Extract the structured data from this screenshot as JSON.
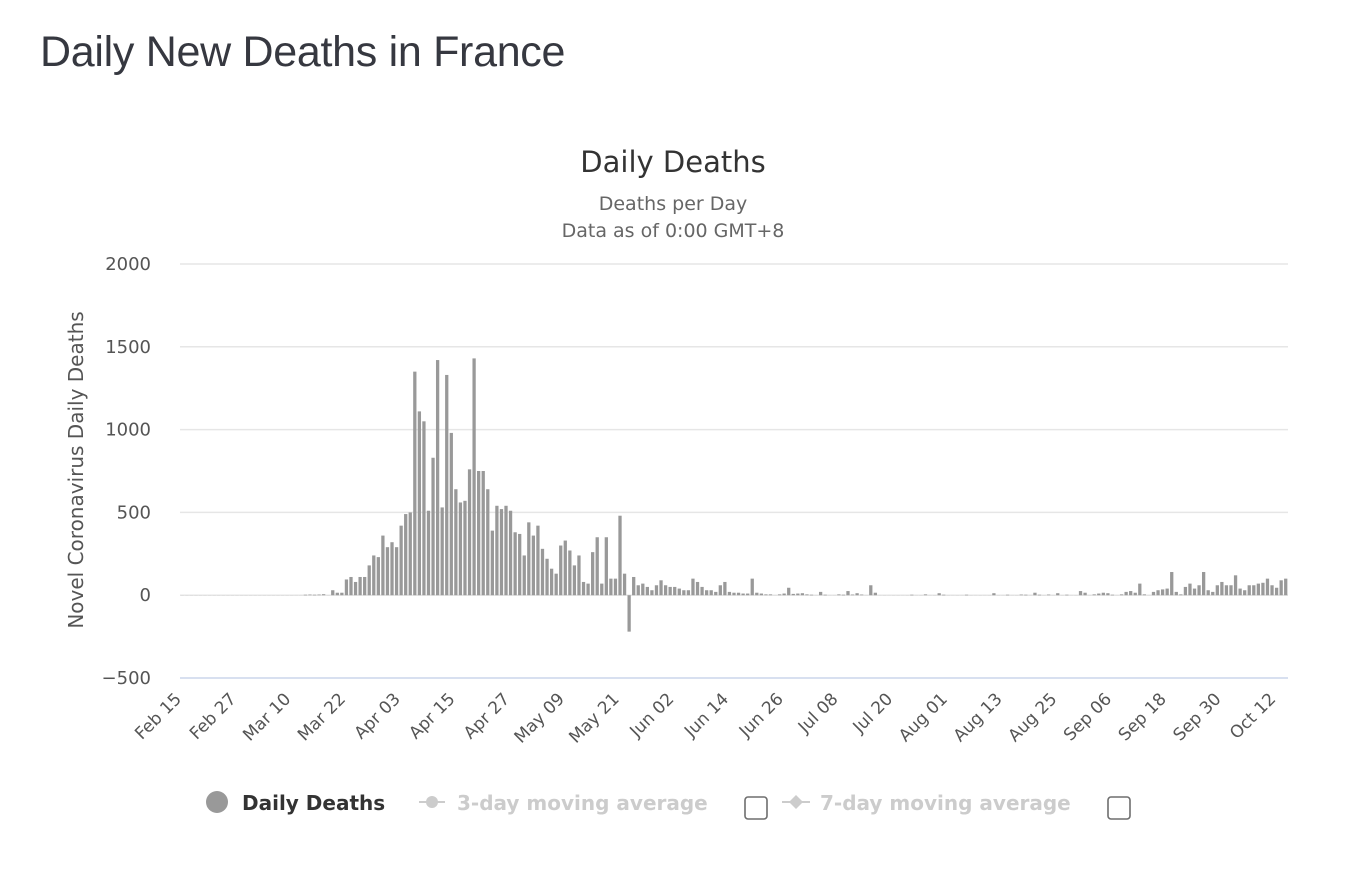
{
  "page": {
    "title": "Daily New Deaths in France"
  },
  "chart_data": {
    "type": "bar",
    "title": "Daily Deaths",
    "subtitle_lines": [
      "Deaths per Day",
      "Data as of 0:00 GMT+8"
    ],
    "ylabel": "Novel Coronavirus Daily Deaths",
    "xlabel": "",
    "ylim": [
      -500,
      2000
    ],
    "yticks": [
      -500,
      0,
      500,
      1000,
      1500,
      2000
    ],
    "grid": true,
    "x_start": "Feb 15",
    "x_end": "Oct 12",
    "xtick_labels": [
      "Feb 15",
      "Feb 27",
      "Mar 10",
      "Mar 22",
      "Apr 03",
      "Apr 15",
      "Apr 27",
      "May 09",
      "May 21",
      "Jun 02",
      "Jun 14",
      "Jun 26",
      "Jul 08",
      "Jul 20",
      "Aug 01",
      "Aug 13",
      "Aug 25",
      "Sep 06",
      "Sep 18",
      "Sep 30",
      "Oct 12"
    ],
    "xtick_interval_days": 12,
    "legend_position": "bottom",
    "series": [
      {
        "name": "Daily Deaths",
        "color": "#999999",
        "visible": true,
        "values": [
          0,
          0,
          0,
          0,
          0,
          0,
          0,
          0,
          0,
          0,
          0,
          0,
          0,
          0,
          0,
          0,
          0,
          0,
          0,
          0,
          0,
          0,
          0,
          1,
          0,
          2,
          2,
          3,
          4,
          3,
          4,
          6,
          1,
          30,
          15,
          15,
          95,
          110,
          80,
          110,
          110,
          180,
          240,
          230,
          360,
          290,
          320,
          290,
          420,
          490,
          500,
          1350,
          1110,
          1050,
          510,
          830,
          1420,
          530,
          1330,
          980,
          640,
          560,
          570,
          760,
          1430,
          750,
          750,
          640,
          390,
          540,
          520,
          540,
          510,
          380,
          370,
          240,
          440,
          360,
          420,
          280,
          220,
          160,
          130,
          300,
          330,
          270,
          180,
          240,
          80,
          70,
          260,
          350,
          70,
          350,
          100,
          100,
          480,
          130,
          -220,
          110,
          60,
          70,
          50,
          30,
          60,
          90,
          60,
          50,
          50,
          40,
          30,
          30,
          100,
          80,
          50,
          30,
          30,
          20,
          60,
          80,
          20,
          15,
          15,
          10,
          10,
          100,
          15,
          10,
          5,
          5,
          2,
          5,
          10,
          45,
          8,
          10,
          12,
          5,
          3,
          2,
          20,
          3,
          2,
          2,
          5,
          3,
          25,
          4,
          12,
          4,
          2,
          60,
          15,
          2,
          1,
          2,
          1,
          1,
          2,
          1,
          3,
          2,
          1,
          5,
          2,
          1,
          12,
          3,
          1,
          2,
          1,
          2,
          3,
          1,
          2,
          1,
          2,
          1,
          12,
          1,
          2,
          3,
          2,
          1,
          4,
          3,
          2,
          15,
          3,
          1,
          4,
          2,
          12,
          1,
          3,
          2,
          1,
          25,
          15,
          2,
          5,
          10,
          15,
          12,
          3,
          2,
          5,
          20,
          25,
          15,
          70,
          5,
          2,
          20,
          30,
          35,
          40,
          140,
          20,
          5,
          50,
          70,
          40,
          60,
          140,
          30,
          20,
          60,
          80,
          60,
          60,
          120,
          40,
          30,
          60,
          60,
          70,
          75,
          100,
          60,
          45,
          90,
          100
        ]
      },
      {
        "name": "3-day moving average",
        "visible": false
      },
      {
        "name": "7-day moving average",
        "visible": false
      }
    ]
  },
  "legend": {
    "items": [
      {
        "label": "Daily Deaths",
        "icon": "circle-marker-icon",
        "active": true,
        "has_checkbox": false
      },
      {
        "label": "3-day moving average",
        "icon": "line-circle-marker-icon",
        "active": false,
        "has_checkbox": true,
        "checked": false
      },
      {
        "label": "7-day moving average",
        "icon": "line-diamond-marker-icon",
        "active": false,
        "has_checkbox": true,
        "checked": false
      }
    ]
  },
  "colors": {
    "bar": "#999999",
    "grid": "#e6e6e6",
    "axis_line": "#ccd6eb",
    "legend_inactive": "#cccccc",
    "title_text": "#363840"
  }
}
